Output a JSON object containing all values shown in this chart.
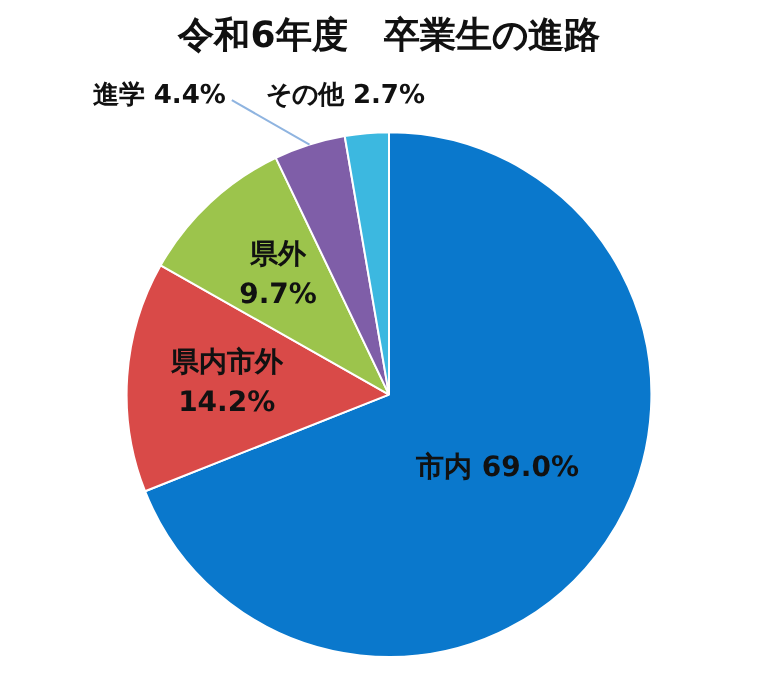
{
  "chart_data": {
    "type": "pie",
    "title": "令和6年度　卒業生の進路",
    "categories": [
      "市内",
      "県内市外",
      "県外",
      "進学",
      "その他"
    ],
    "values": [
      69.0,
      14.2,
      9.7,
      4.4,
      2.7
    ],
    "value_labels": [
      "69.0%",
      "14.2%",
      "9.7%",
      "4.4%",
      "2.7%"
    ],
    "colors": [
      "#0a78cc",
      "#d94a48",
      "#9cc44c",
      "#7f5ea8",
      "#3cb8e0"
    ],
    "data_labels": true,
    "legend": false
  }
}
